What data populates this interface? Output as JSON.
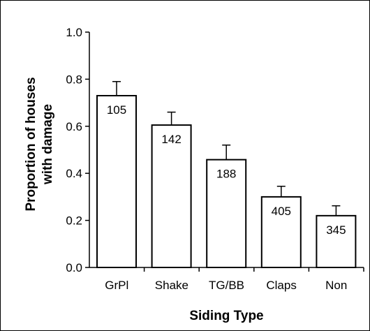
{
  "chart_data": {
    "type": "bar",
    "title": "",
    "xlabel": "Siding Type",
    "ylabel": [
      "Proportion of houses",
      "with damage"
    ],
    "ylim": [
      0.0,
      1.0
    ],
    "yticks": [
      "0.0",
      "0.2",
      "0.4",
      "0.6",
      "0.8",
      "1.0"
    ],
    "categories": [
      "GrPl",
      "Shake",
      "TG/BB",
      "Claps",
      "Non"
    ],
    "values": [
      0.73,
      0.605,
      0.458,
      0.3,
      0.22
    ],
    "error_upper": [
      0.79,
      0.66,
      0.52,
      0.345,
      0.262
    ],
    "bar_labels": [
      "105",
      "142",
      "188",
      "405",
      "345"
    ],
    "grid": false,
    "legend": "none",
    "colors": {
      "bar_fill": "#ffffff",
      "stroke": "#000000"
    }
  }
}
